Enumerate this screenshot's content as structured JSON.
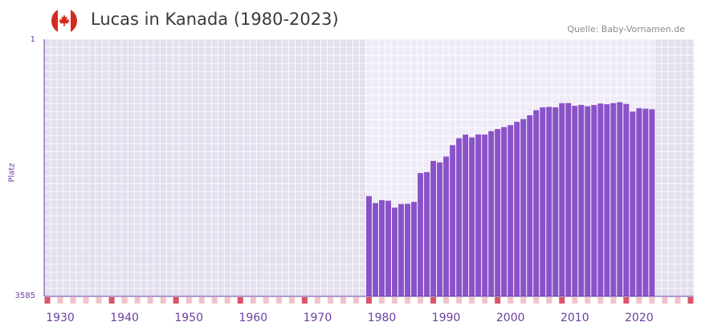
{
  "header": {
    "title": "Lucas in Kanada (1980-2023)",
    "source": "Quelle: Baby-Vornamen.de",
    "flag_icon": "canada-flag-icon"
  },
  "colors": {
    "bar": "#8a52c8",
    "plot_bg": "#e3dfee",
    "highlight_bg": "#efebf7",
    "grid": "#ffffff",
    "axis_text": "#6b3fa0",
    "tick_mark": "#d9556a",
    "minor_tick_mark": "#f0c4cb"
  },
  "chart_data": {
    "type": "bar",
    "title": "Lucas in Kanada (1980-2023)",
    "xlabel": "",
    "ylabel": "Platz",
    "ylim": [
      3585,
      1
    ],
    "y_inverted": true,
    "ytick_labels": [
      "1",
      "3585"
    ],
    "xlim": [
      1928,
      2029
    ],
    "xtick_labels": [
      "1930",
      "1940",
      "1950",
      "1960",
      "1970",
      "1980",
      "1990",
      "2000",
      "2010",
      "2020"
    ],
    "xticks": [
      1930,
      1940,
      1950,
      1960,
      1970,
      1980,
      1990,
      2000,
      2010,
      2020
    ],
    "highlight_range": [
      1978,
      2023
    ],
    "x": [
      1978,
      1979,
      1980,
      1981,
      1982,
      1983,
      1984,
      1985,
      1986,
      1987,
      1988,
      1989,
      1990,
      1991,
      1992,
      1993,
      1994,
      1995,
      1996,
      1997,
      1998,
      1999,
      2000,
      2001,
      2002,
      2003,
      2004,
      2005,
      2006,
      2007,
      2008,
      2009,
      2010,
      2011,
      2012,
      2013,
      2014,
      2015,
      2016,
      2017,
      2018,
      2019,
      2020,
      2021,
      2022
    ],
    "values": [
      2187,
      2285,
      2243,
      2252,
      2349,
      2298,
      2295,
      2269,
      1866,
      1853,
      1697,
      1718,
      1636,
      1478,
      1381,
      1331,
      1369,
      1328,
      1330,
      1282,
      1252,
      1226,
      1198,
      1153,
      1114,
      1061,
      990,
      950,
      944,
      950,
      892,
      891,
      929,
      916,
      934,
      918,
      897,
      907,
      892,
      879,
      902,
      1009,
      962,
      968,
      977
    ]
  }
}
